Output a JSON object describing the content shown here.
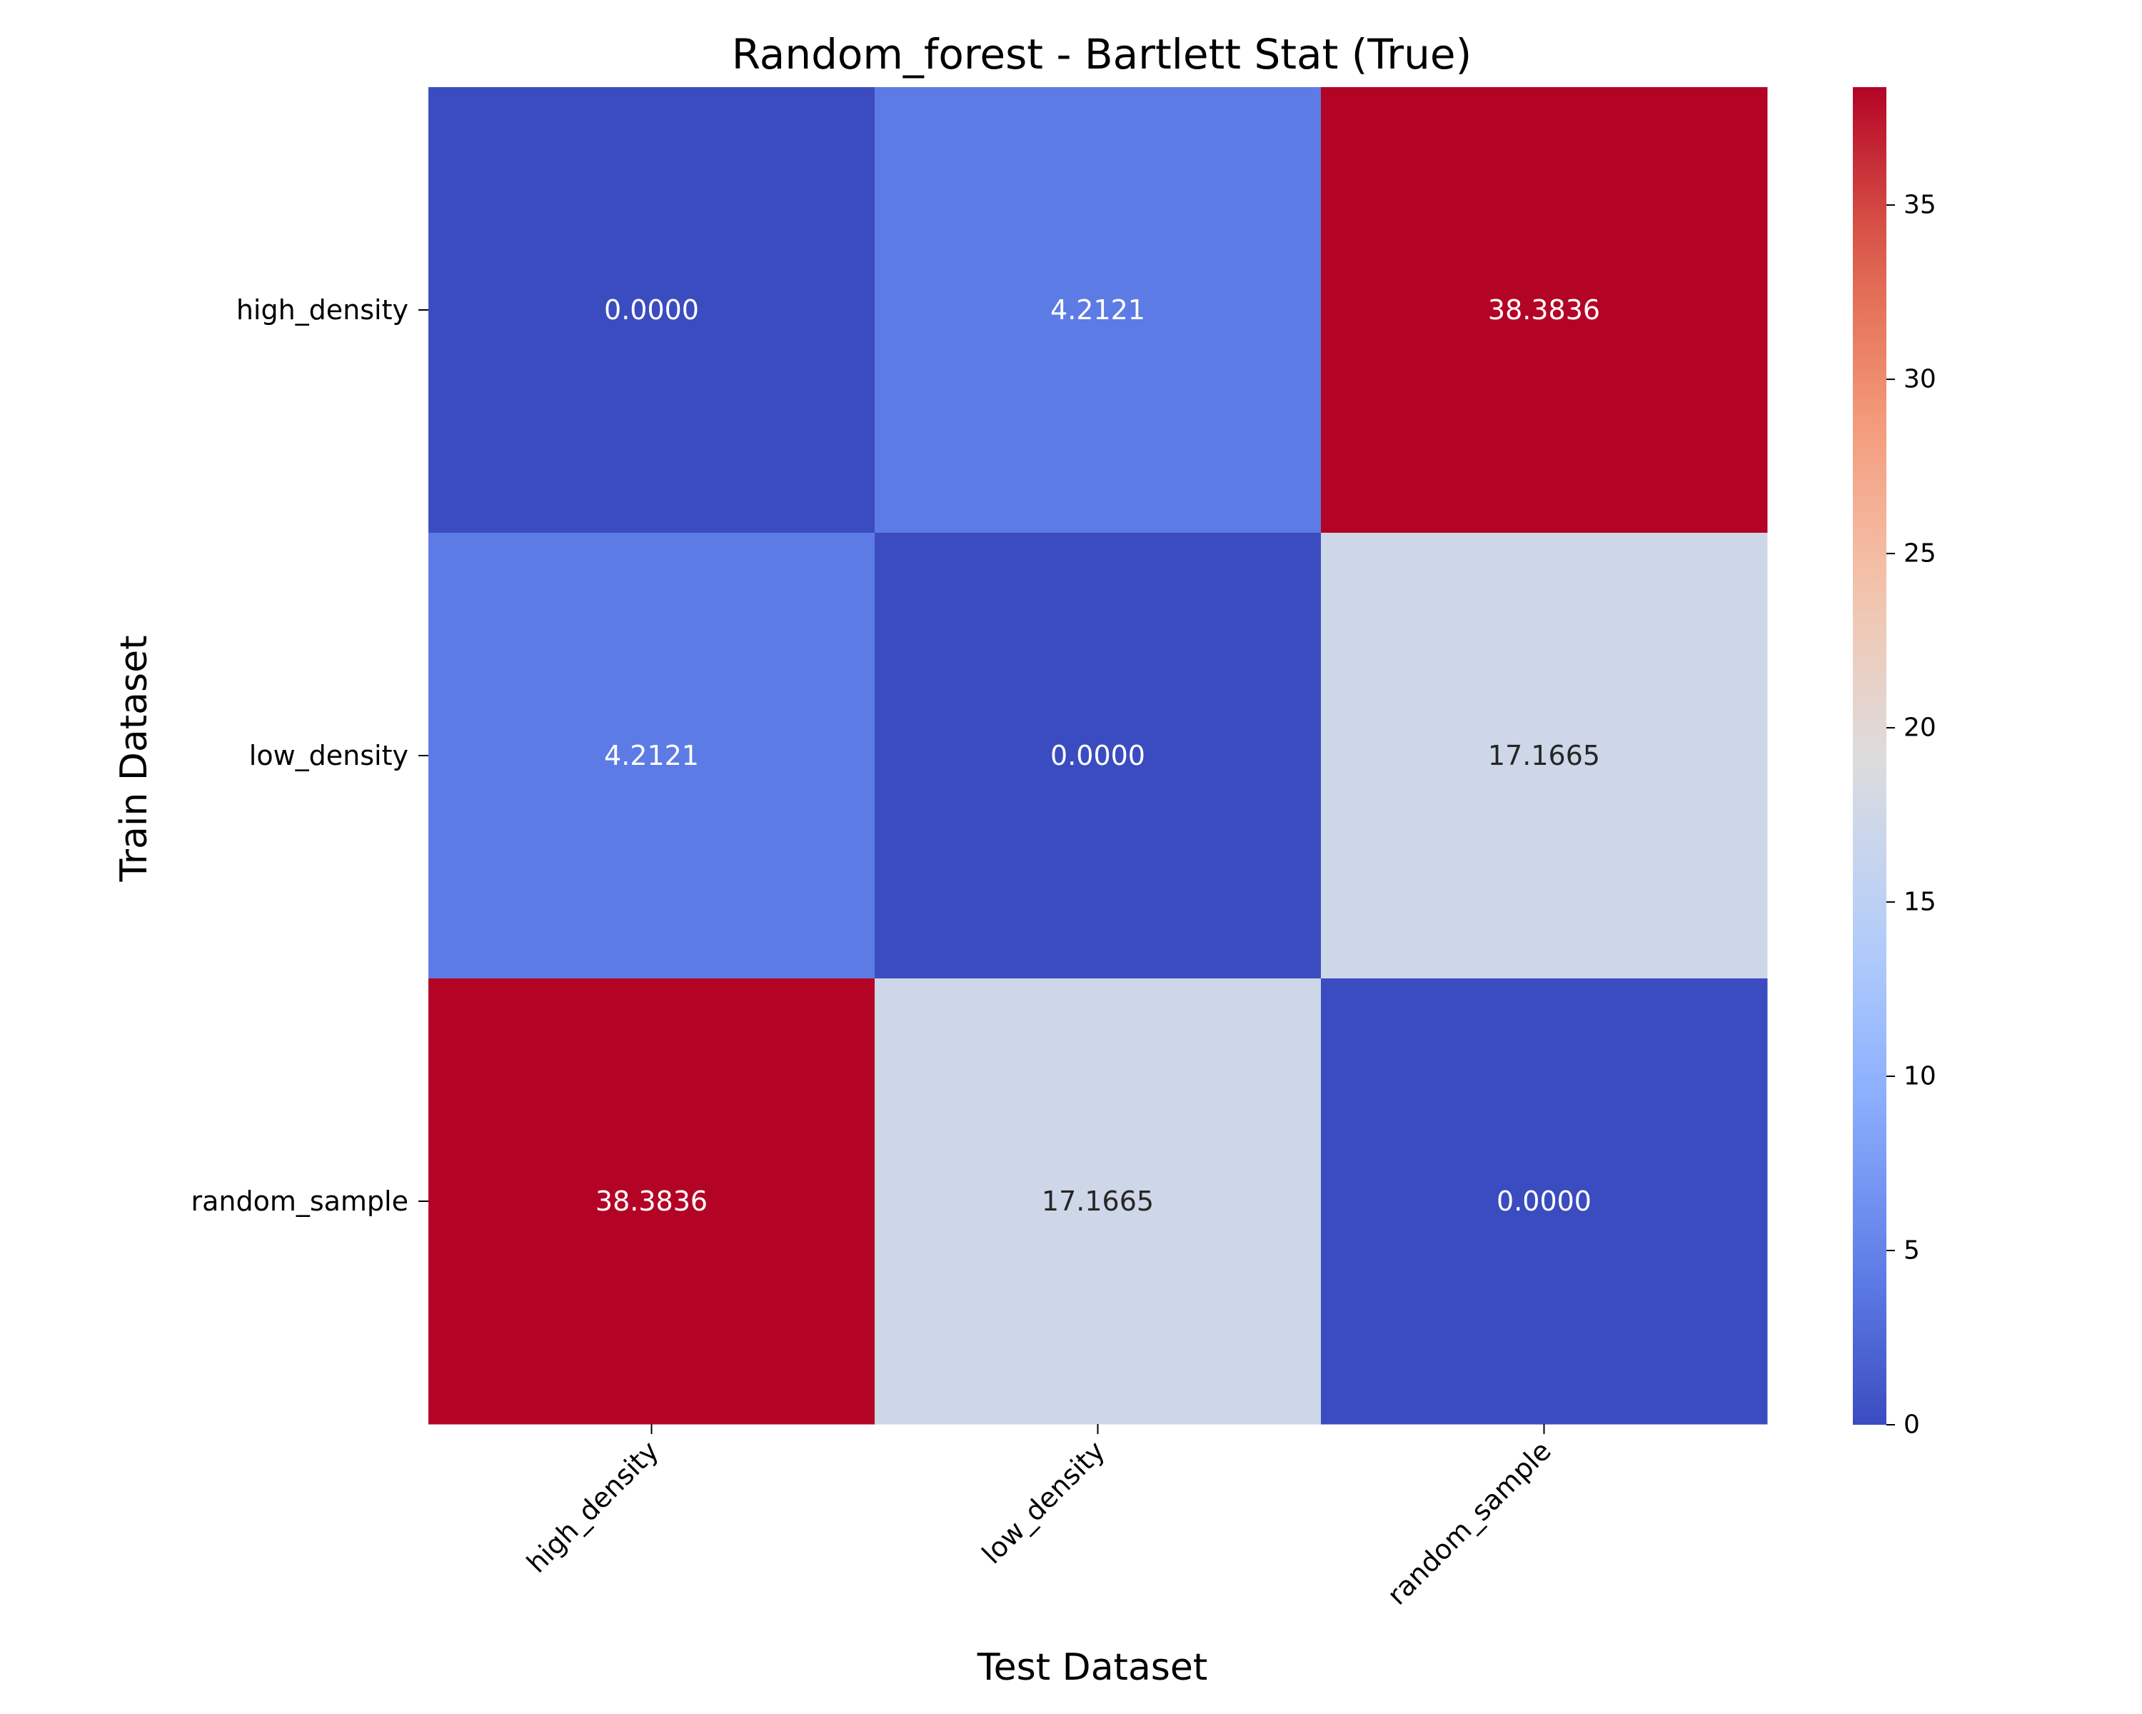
{
  "chart_data": {
    "type": "heatmap",
    "title": "Random_forest - Bartlett Stat (True)",
    "xlabel": "Test Dataset",
    "ylabel": "Train Dataset",
    "x_categories": [
      "high_density",
      "low_density",
      "random_sample"
    ],
    "y_categories": [
      "high_density",
      "low_density",
      "random_sample"
    ],
    "values": [
      [
        0.0,
        4.2121,
        38.3836
      ],
      [
        4.2121,
        0.0,
        17.1665
      ],
      [
        38.3836,
        17.1665,
        0.0
      ]
    ],
    "cell_labels": [
      [
        "0.0000",
        "4.2121",
        "38.3836"
      ],
      [
        "4.2121",
        "0.0000",
        "17.1665"
      ],
      [
        "38.3836",
        "17.1665",
        "0.0000"
      ]
    ],
    "colorbar": {
      "min": 0,
      "max": 38.3836,
      "ticks": [
        0,
        5,
        10,
        15,
        20,
        25,
        30,
        35
      ],
      "tick_labels": [
        "0",
        "5",
        "10",
        "15",
        "20",
        "25",
        "30",
        "35"
      ]
    },
    "colormap": "coolwarm",
    "colors": {
      "low": "#3b4cc0",
      "mid": "#dddcdc",
      "high": "#b40426"
    },
    "grid": false,
    "legend": "colorbar-right"
  }
}
